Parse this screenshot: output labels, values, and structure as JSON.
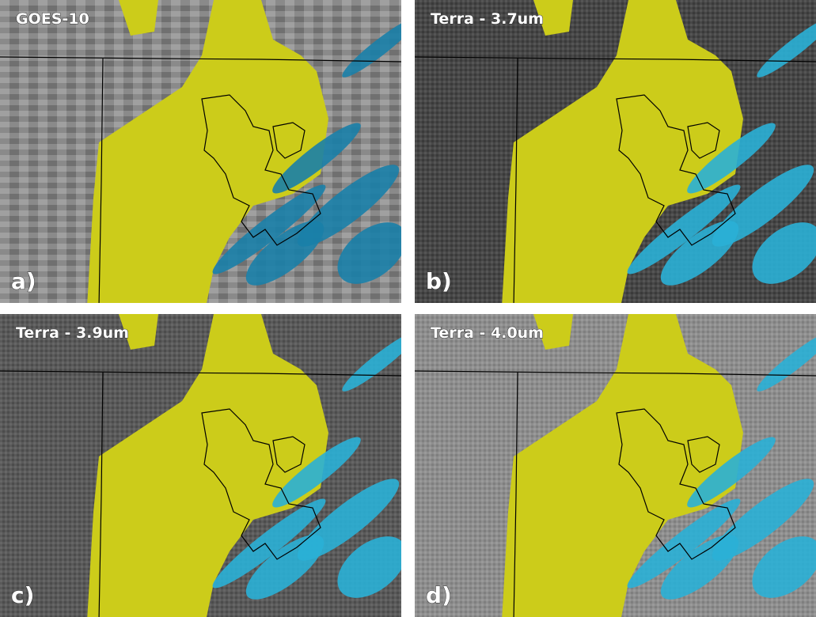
{
  "panels": [
    {
      "title": "GOES-10",
      "label": "a)"
    },
    {
      "title": "Terra - 3.7um",
      "label": "b)"
    },
    {
      "title": "Terra - 3.9um",
      "label": "c)"
    },
    {
      "title": "Terra - 4.0um",
      "label": "d)"
    }
  ]
}
